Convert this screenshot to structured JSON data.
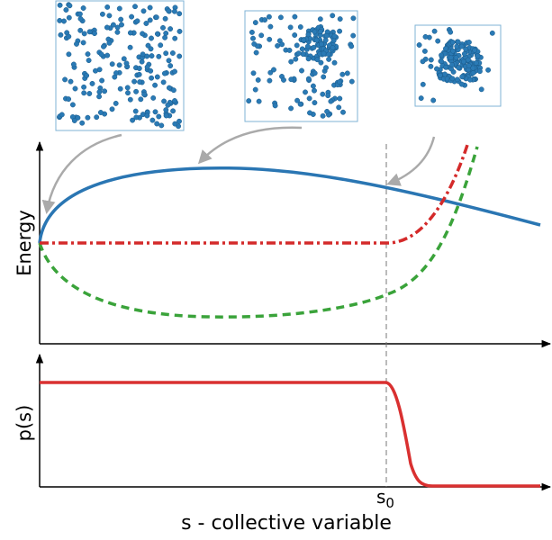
{
  "top_plot": {
    "y_label": "Energy"
  },
  "bottom_plot": {
    "y_label": "p(s)"
  },
  "x_axis": {
    "label": "s - collective variable",
    "marker": {
      "base": "s",
      "subscript": "0"
    }
  }
}
